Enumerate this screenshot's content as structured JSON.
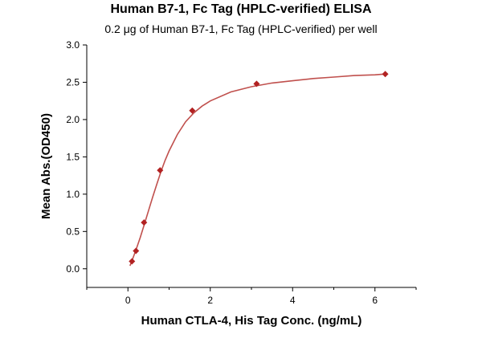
{
  "chart_data": {
    "type": "scatter",
    "title": "Human B7-1, Fc Tag (HPLC-verified) ELISA",
    "subtitle": "0.2 μg of Human B7-1, Fc Tag (HPLC-verified) per well",
    "xlabel": "Human CTLA-4, His Tag Conc. (ng/mL)",
    "ylabel": "Mean Abs.(OD450)",
    "xlim": [
      -1,
      7
    ],
    "ylim": [
      -0.25,
      3.0
    ],
    "xticks": [
      0,
      2,
      4,
      6
    ],
    "yticks": [
      0.0,
      0.5,
      1.0,
      1.5,
      2.0,
      2.5,
      3.0
    ],
    "ytick_labels": [
      "0.0",
      "0.5",
      "1.0",
      "1.5",
      "2.0",
      "2.5",
      "3.0"
    ],
    "grid": false,
    "series": [
      {
        "points": [
          {
            "x": 0.098,
            "y": 0.1
          },
          {
            "x": 0.195,
            "y": 0.24
          },
          {
            "x": 0.391,
            "y": 0.62
          },
          {
            "x": 0.781,
            "y": 1.32
          },
          {
            "x": 1.563,
            "y": 2.12
          },
          {
            "x": 3.125,
            "y": 2.48
          },
          {
            "x": 6.25,
            "y": 2.61
          }
        ],
        "marker": "diamond",
        "color": "#B22222"
      }
    ],
    "fit_curve": {
      "color": "#C0504D",
      "points": [
        {
          "x": 0.05,
          "y": 0.04
        },
        {
          "x": 0.1,
          "y": 0.11
        },
        {
          "x": 0.2,
          "y": 0.26
        },
        {
          "x": 0.3,
          "y": 0.42
        },
        {
          "x": 0.4,
          "y": 0.6
        },
        {
          "x": 0.5,
          "y": 0.78
        },
        {
          "x": 0.6,
          "y": 0.96
        },
        {
          "x": 0.7,
          "y": 1.13
        },
        {
          "x": 0.8,
          "y": 1.3
        },
        {
          "x": 0.9,
          "y": 1.45
        },
        {
          "x": 1.0,
          "y": 1.58
        },
        {
          "x": 1.2,
          "y": 1.8
        },
        {
          "x": 1.4,
          "y": 1.97
        },
        {
          "x": 1.6,
          "y": 2.09
        },
        {
          "x": 1.8,
          "y": 2.18
        },
        {
          "x": 2.0,
          "y": 2.25
        },
        {
          "x": 2.5,
          "y": 2.37
        },
        {
          "x": 3.0,
          "y": 2.44
        },
        {
          "x": 3.5,
          "y": 2.49
        },
        {
          "x": 4.0,
          "y": 2.52
        },
        {
          "x": 4.5,
          "y": 2.55
        },
        {
          "x": 5.0,
          "y": 2.57
        },
        {
          "x": 5.5,
          "y": 2.59
        },
        {
          "x": 6.0,
          "y": 2.6
        },
        {
          "x": 6.25,
          "y": 2.61
        }
      ]
    }
  }
}
